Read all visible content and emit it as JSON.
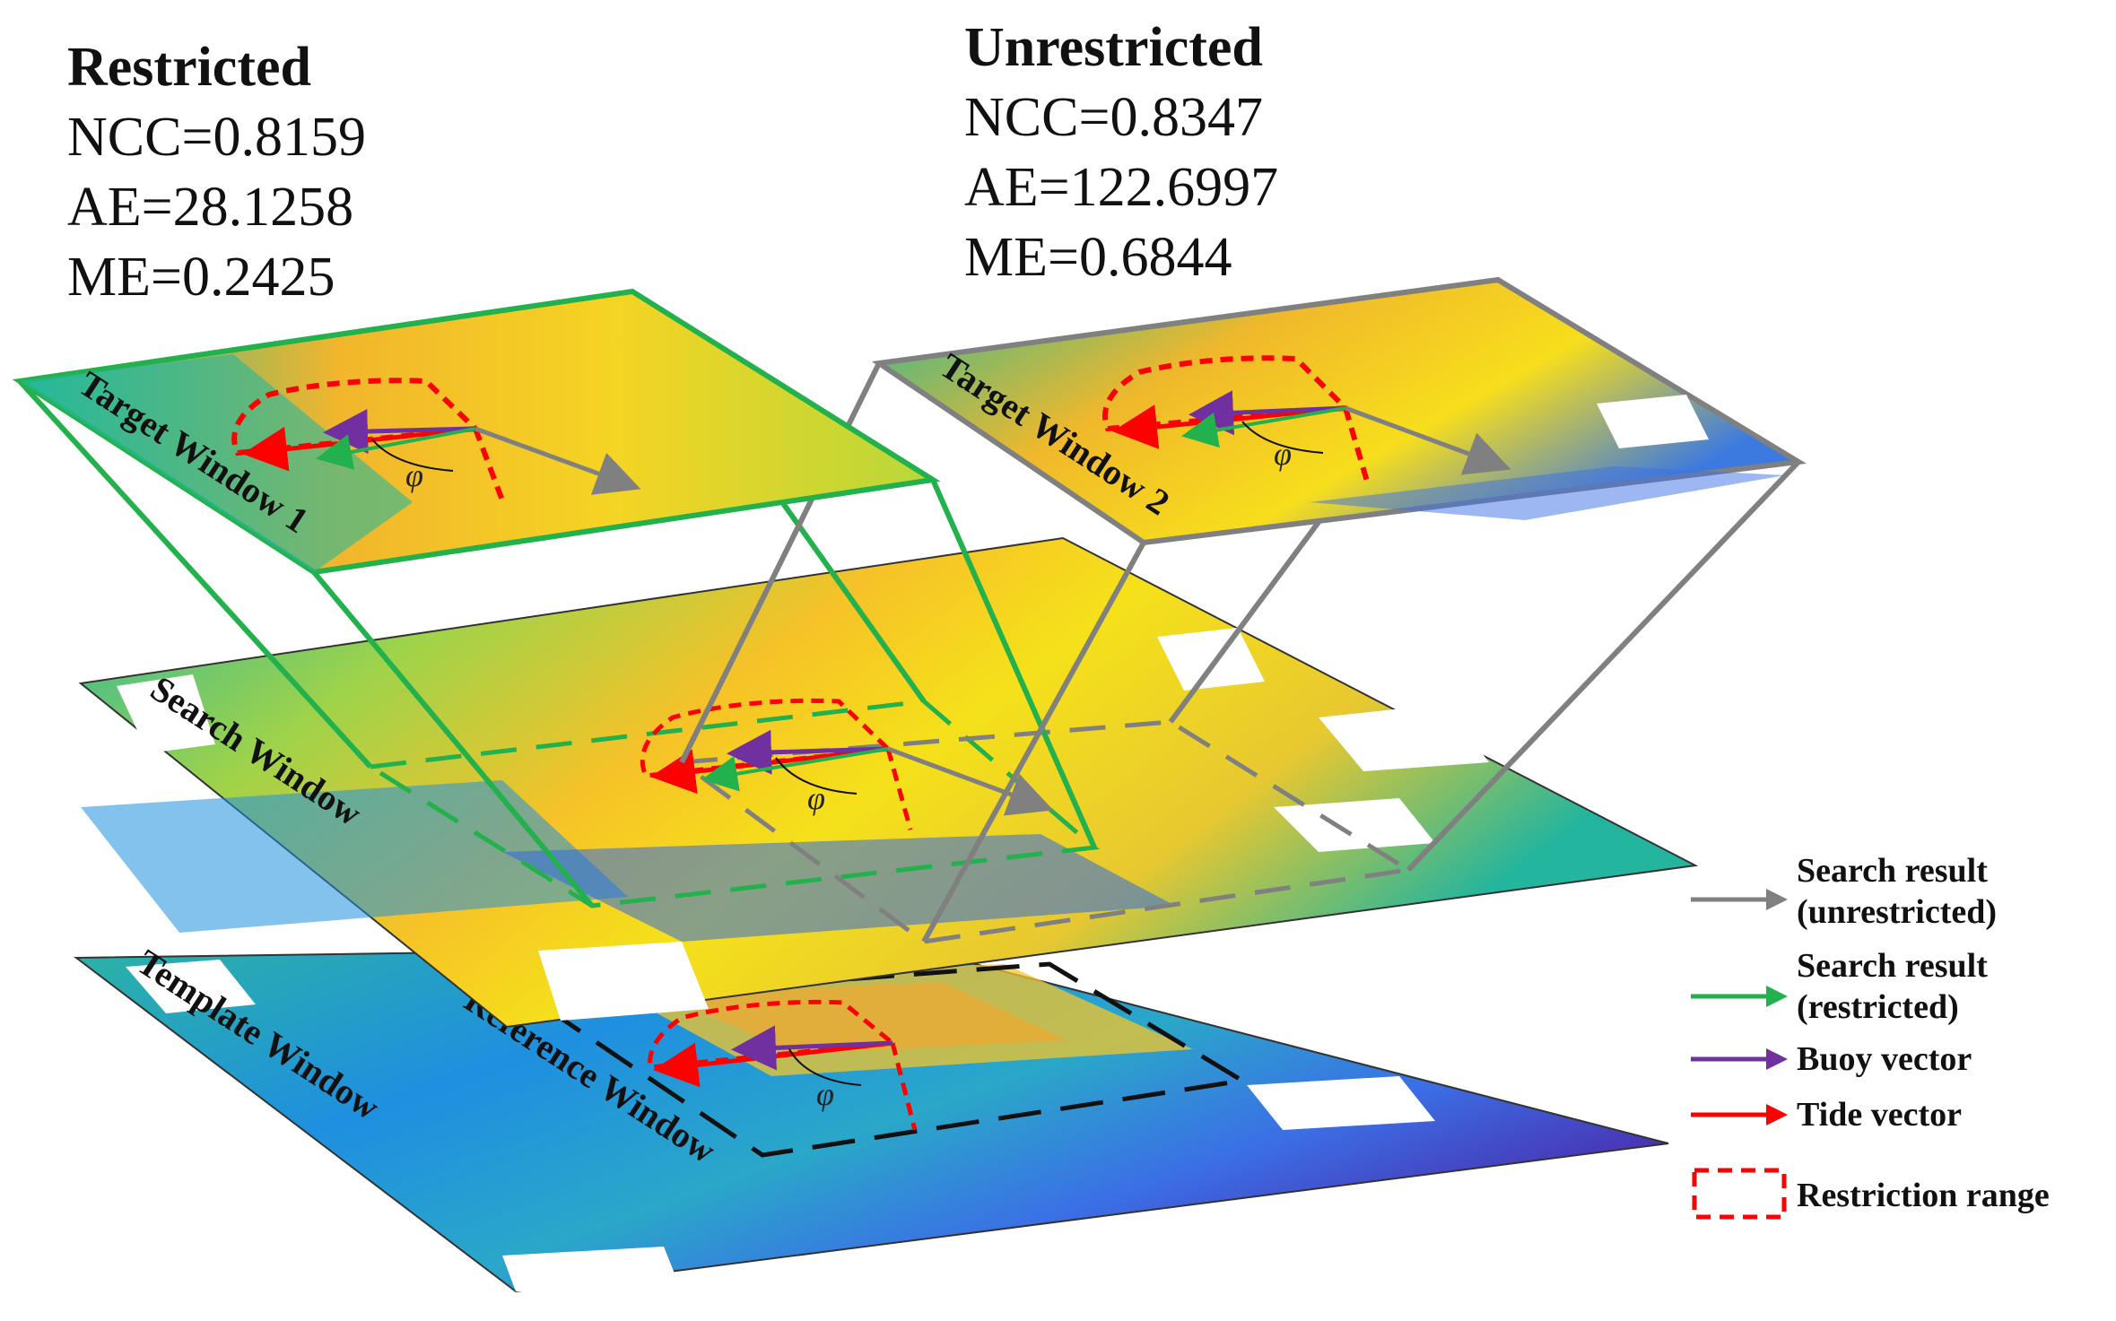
{
  "stats": {
    "restricted": {
      "title": "Restricted",
      "lines": [
        "NCC=0.8159",
        "AE=28.1258",
        "ME=0.2425"
      ]
    },
    "unrestricted": {
      "title": "Unrestricted",
      "lines": [
        "NCC=0.8347",
        "AE=122.6997",
        "ME=0.6844"
      ]
    }
  },
  "windows": {
    "target1": "Target Window 1",
    "target2": "Target Window 2",
    "search": "Search Window",
    "template": "Template Window",
    "reference": "Reference Window"
  },
  "angle_symbol": "φ",
  "legend": [
    {
      "id": "search-unrestricted",
      "lines": [
        "Search result",
        "(unrestricted)"
      ],
      "color": "#808080",
      "symbol": "arrow"
    },
    {
      "id": "search-restricted",
      "lines": [
        "Search result",
        "(restricted)"
      ],
      "color": "#22b14c",
      "symbol": "arrow"
    },
    {
      "id": "buoy-vector",
      "lines": [
        "Buoy vector"
      ],
      "color": "#7030a0",
      "symbol": "arrow"
    },
    {
      "id": "tide-vector",
      "lines": [
        "Tide vector"
      ],
      "color": "#ff0000",
      "symbol": "arrow"
    },
    {
      "id": "restriction-range",
      "lines": [
        "Restriction range"
      ],
      "color": "#ff0000",
      "symbol": "dashed-box"
    }
  ],
  "colors": {
    "restricted_frame": "#22b14c",
    "unrestricted_frame": "#808080",
    "buoy": "#7030a0",
    "tide": "#ff0000",
    "restriction": "#ff0000",
    "reference": "#111111"
  }
}
